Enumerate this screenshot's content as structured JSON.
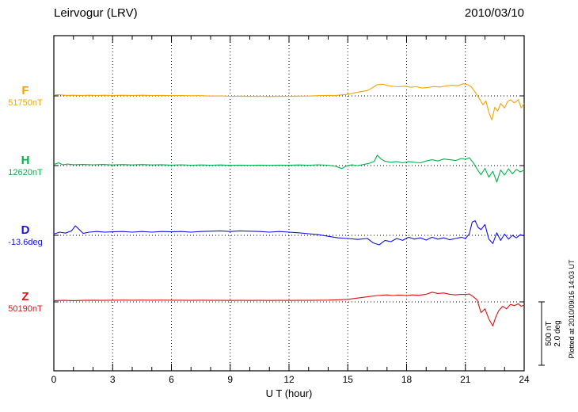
{
  "chart_data": {
    "type": "line",
    "title": "Leirvogur (LRV)",
    "date": "2010/03/10",
    "xlabel": "U T (hour)",
    "xlim": [
      0,
      24
    ],
    "x_major_ticks": [
      0,
      3,
      6,
      9,
      12,
      15,
      18,
      21,
      24
    ],
    "x_minor_step": 1,
    "grid": "dotted-vertical-at-major-ticks",
    "scale": {
      "nT_per_bar": 500,
      "deg_per_bar": 2.0
    },
    "annotations": {
      "scale_nt": "500 nT",
      "scale_deg": "2.0 deg",
      "plotted_at": "Plotted at 2010/09/16 14:03 UT"
    },
    "series": [
      {
        "name": "F",
        "baseline_label": "51750nT",
        "unit": "nT",
        "color": "#F5A300",
        "points": [
          [
            0,
            6
          ],
          [
            0.2,
            10
          ],
          [
            0.4,
            7
          ],
          [
            0.7,
            4
          ],
          [
            1,
            5
          ],
          [
            1.4,
            3
          ],
          [
            1.8,
            5
          ],
          [
            2.2,
            3
          ],
          [
            2.6,
            5
          ],
          [
            3,
            3
          ],
          [
            3.5,
            5
          ],
          [
            4,
            3
          ],
          [
            4.5,
            5
          ],
          [
            5,
            3
          ],
          [
            5.5,
            4
          ],
          [
            6,
            2
          ],
          [
            6.5,
            3
          ],
          [
            7,
            1
          ],
          [
            7.5,
            2
          ],
          [
            8,
            -1
          ],
          [
            8.5,
            0
          ],
          [
            9,
            -3
          ],
          [
            9.5,
            -2
          ],
          [
            10,
            -4
          ],
          [
            10.5,
            -3
          ],
          [
            11,
            -5
          ],
          [
            11.5,
            -4
          ],
          [
            12,
            -4
          ],
          [
            12.5,
            -2
          ],
          [
            13,
            -1
          ],
          [
            13.5,
            2
          ],
          [
            14,
            4
          ],
          [
            14.3,
            2
          ],
          [
            14.6,
            7
          ],
          [
            15,
            12
          ],
          [
            15.3,
            22
          ],
          [
            15.6,
            32
          ],
          [
            16,
            42
          ],
          [
            16.3,
            68
          ],
          [
            16.5,
            88
          ],
          [
            16.8,
            92
          ],
          [
            17,
            82
          ],
          [
            17.3,
            75
          ],
          [
            17.6,
            72
          ],
          [
            17.9,
            76
          ],
          [
            18.2,
            68
          ],
          [
            18.5,
            72
          ],
          [
            18.8,
            62
          ],
          [
            19.1,
            66
          ],
          [
            19.4,
            74
          ],
          [
            19.7,
            70
          ],
          [
            20,
            78
          ],
          [
            20.3,
            84
          ],
          [
            20.6,
            80
          ],
          [
            20.9,
            96
          ],
          [
            21.1,
            88
          ],
          [
            21.3,
            72
          ],
          [
            21.5,
            30
          ],
          [
            21.7,
            -20
          ],
          [
            21.9,
            -70
          ],
          [
            22.05,
            -40
          ],
          [
            22.2,
            -130
          ],
          [
            22.35,
            -190
          ],
          [
            22.5,
            -90
          ],
          [
            22.65,
            -120
          ],
          [
            22.8,
            -60
          ],
          [
            23,
            -95
          ],
          [
            23.15,
            -45
          ],
          [
            23.3,
            -30
          ],
          [
            23.5,
            -55
          ],
          [
            23.7,
            -30
          ],
          [
            23.85,
            -95
          ],
          [
            24,
            -60
          ]
        ]
      },
      {
        "name": "H",
        "baseline_label": "12620nT",
        "unit": "nT",
        "color": "#00B44B",
        "points": [
          [
            0,
            8
          ],
          [
            0.25,
            22
          ],
          [
            0.45,
            6
          ],
          [
            0.7,
            12
          ],
          [
            1,
            7
          ],
          [
            1.5,
            9
          ],
          [
            2,
            6
          ],
          [
            2.5,
            9
          ],
          [
            3,
            5
          ],
          [
            3.5,
            8
          ],
          [
            4,
            5
          ],
          [
            4.5,
            8
          ],
          [
            5,
            5
          ],
          [
            5.5,
            7
          ],
          [
            6,
            4
          ],
          [
            6.5,
            6
          ],
          [
            7,
            3
          ],
          [
            7.5,
            5
          ],
          [
            8,
            3
          ],
          [
            8.5,
            5
          ],
          [
            9,
            2
          ],
          [
            9.5,
            4
          ],
          [
            10,
            2
          ],
          [
            10.5,
            4
          ],
          [
            11,
            2
          ],
          [
            11.5,
            4
          ],
          [
            12,
            3
          ],
          [
            12.5,
            5
          ],
          [
            13,
            3
          ],
          [
            13.5,
            6
          ],
          [
            14,
            3
          ],
          [
            14.4,
            -6
          ],
          [
            14.7,
            -24
          ],
          [
            14.9,
            -4
          ],
          [
            15.2,
            6
          ],
          [
            15.5,
            0
          ],
          [
            15.8,
            8
          ],
          [
            16.1,
            18
          ],
          [
            16.35,
            34
          ],
          [
            16.5,
            82
          ],
          [
            16.7,
            52
          ],
          [
            16.9,
            34
          ],
          [
            17.2,
            26
          ],
          [
            17.5,
            32
          ],
          [
            17.8,
            22
          ],
          [
            18.1,
            32
          ],
          [
            18.4,
            26
          ],
          [
            18.7,
            22
          ],
          [
            19,
            36
          ],
          [
            19.3,
            46
          ],
          [
            19.6,
            36
          ],
          [
            19.9,
            52
          ],
          [
            20.2,
            46
          ],
          [
            20.5,
            40
          ],
          [
            20.8,
            56
          ],
          [
            21,
            50
          ],
          [
            21.2,
            62
          ],
          [
            21.4,
            24
          ],
          [
            21.6,
            -28
          ],
          [
            21.8,
            -72
          ],
          [
            22,
            -22
          ],
          [
            22.2,
            -92
          ],
          [
            22.4,
            -45
          ],
          [
            22.6,
            -130
          ],
          [
            22.8,
            -35
          ],
          [
            23,
            -75
          ],
          [
            23.2,
            -25
          ],
          [
            23.4,
            -65
          ],
          [
            23.6,
            -30
          ],
          [
            23.8,
            -50
          ],
          [
            24,
            -35
          ]
        ]
      },
      {
        "name": "D",
        "baseline_label": "-13.6deg",
        "unit": "deg",
        "color": "#1414DC",
        "points": [
          [
            0,
            0.04
          ],
          [
            0.3,
            0.1
          ],
          [
            0.6,
            0.07
          ],
          [
            0.9,
            0.14
          ],
          [
            1.1,
            0.3
          ],
          [
            1.3,
            0.18
          ],
          [
            1.5,
            0.06
          ],
          [
            1.8,
            0.1
          ],
          [
            2.2,
            0.12
          ],
          [
            2.6,
            0.1
          ],
          [
            3,
            0.11
          ],
          [
            3.5,
            0.12
          ],
          [
            4,
            0.1
          ],
          [
            4.5,
            0.12
          ],
          [
            5,
            0.1
          ],
          [
            5.5,
            0.12
          ],
          [
            6,
            0.11
          ],
          [
            6.5,
            0.12
          ],
          [
            7,
            0.1
          ],
          [
            7.5,
            0.12
          ],
          [
            8,
            0.13
          ],
          [
            8.5,
            0.14
          ],
          [
            9,
            0.12
          ],
          [
            9.5,
            0.14
          ],
          [
            10,
            0.13
          ],
          [
            10.5,
            0.12
          ],
          [
            11,
            0.1
          ],
          [
            11.5,
            0.12
          ],
          [
            12,
            0.1
          ],
          [
            12.5,
            0.08
          ],
          [
            13,
            0.05
          ],
          [
            13.5,
            0.02
          ],
          [
            14,
            -0.03
          ],
          [
            14.5,
            -0.08
          ],
          [
            15,
            -0.1
          ],
          [
            15.5,
            -0.13
          ],
          [
            16,
            -0.1
          ],
          [
            16.3,
            -0.24
          ],
          [
            16.6,
            -0.3
          ],
          [
            16.9,
            -0.16
          ],
          [
            17.2,
            -0.2
          ],
          [
            17.5,
            -0.1
          ],
          [
            17.8,
            -0.16
          ],
          [
            18.1,
            -0.06
          ],
          [
            18.4,
            -0.12
          ],
          [
            18.7,
            -0.08
          ],
          [
            19,
            -0.15
          ],
          [
            19.3,
            -0.06
          ],
          [
            19.6,
            -0.12
          ],
          [
            19.9,
            -0.08
          ],
          [
            20.2,
            -0.14
          ],
          [
            20.5,
            -0.1
          ],
          [
            20.8,
            -0.06
          ],
          [
            21,
            -0.1
          ],
          [
            21.2,
            0.04
          ],
          [
            21.35,
            0.42
          ],
          [
            21.5,
            0.46
          ],
          [
            21.65,
            0.25
          ],
          [
            21.8,
            0.18
          ],
          [
            22,
            0.34
          ],
          [
            22.2,
            -0.12
          ],
          [
            22.4,
            -0.26
          ],
          [
            22.6,
            0.08
          ],
          [
            22.8,
            -0.16
          ],
          [
            23,
            0.04
          ],
          [
            23.2,
            -0.12
          ],
          [
            23.4,
            0
          ],
          [
            23.6,
            -0.08
          ],
          [
            23.8,
            0.02
          ],
          [
            24,
            -0.02
          ]
        ]
      },
      {
        "name": "Z",
        "baseline_label": "50190nT",
        "unit": "nT",
        "color": "#E01010",
        "points": [
          [
            0,
            10
          ],
          [
            0.5,
            12
          ],
          [
            1,
            10
          ],
          [
            1.5,
            12
          ],
          [
            2,
            13
          ],
          [
            2.5,
            12
          ],
          [
            3,
            13
          ],
          [
            3.5,
            14
          ],
          [
            4,
            13
          ],
          [
            4.5,
            14
          ],
          [
            5,
            13
          ],
          [
            5.5,
            14
          ],
          [
            6,
            13
          ],
          [
            6.5,
            13
          ],
          [
            7,
            12
          ],
          [
            7.5,
            13
          ],
          [
            8,
            12
          ],
          [
            8.5,
            12
          ],
          [
            9,
            11
          ],
          [
            9.5,
            12
          ],
          [
            10,
            11
          ],
          [
            10.5,
            12
          ],
          [
            11,
            11
          ],
          [
            11.5,
            12
          ],
          [
            12,
            11
          ],
          [
            12.5,
            12
          ],
          [
            13,
            12
          ],
          [
            13.5,
            13
          ],
          [
            14,
            14
          ],
          [
            14.5,
            16
          ],
          [
            15,
            20
          ],
          [
            15.5,
            30
          ],
          [
            16,
            40
          ],
          [
            16.5,
            50
          ],
          [
            17,
            55
          ],
          [
            17.3,
            50
          ],
          [
            17.6,
            54
          ],
          [
            18,
            50
          ],
          [
            18.3,
            55
          ],
          [
            18.6,
            52
          ],
          [
            19,
            60
          ],
          [
            19.3,
            76
          ],
          [
            19.6,
            66
          ],
          [
            19.9,
            70
          ],
          [
            20.2,
            60
          ],
          [
            20.5,
            55
          ],
          [
            20.8,
            60
          ],
          [
            21,
            58
          ],
          [
            21.2,
            62
          ],
          [
            21.4,
            42
          ],
          [
            21.6,
            15
          ],
          [
            21.8,
            -85
          ],
          [
            22,
            -55
          ],
          [
            22.2,
            -135
          ],
          [
            22.4,
            -190
          ],
          [
            22.55,
            -120
          ],
          [
            22.7,
            -70
          ],
          [
            22.9,
            -35
          ],
          [
            23.1,
            -55
          ],
          [
            23.3,
            -20
          ],
          [
            23.5,
            -30
          ],
          [
            23.7,
            -15
          ],
          [
            23.85,
            -35
          ],
          [
            24,
            -25
          ]
        ]
      }
    ]
  }
}
